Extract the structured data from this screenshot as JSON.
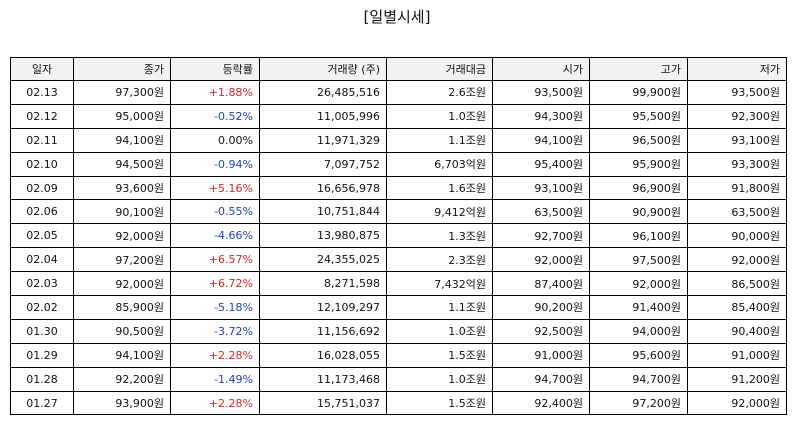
{
  "title": "[일별시세]",
  "table": {
    "headers": [
      "일자",
      "종가",
      "등락률",
      "거래량 (주)",
      "거래대금",
      "시가",
      "고가",
      "저가"
    ],
    "rows": [
      [
        "02.13",
        "97,300원",
        "+1.88%",
        "26,485,516",
        "2.6조원",
        "93,500원",
        "99,900원",
        "93,500원"
      ],
      [
        "02.12",
        "95,000원",
        "-0.52%",
        "11,005,996",
        "1.0조원",
        "94,300원",
        "95,500원",
        "92,300원"
      ],
      [
        "02.11",
        "94,100원",
        "0.00%",
        "11,971,329",
        "1.1조원",
        "94,100원",
        "96,500원",
        "93,100원"
      ],
      [
        "02.10",
        "94,500원",
        "-0.94%",
        "7,097,752",
        "6,703억원",
        "95,400원",
        "95,900원",
        "93,300원"
      ],
      [
        "02.09",
        "93,600원",
        "+5.16%",
        "16,656,978",
        "1.6조원",
        "93,100원",
        "96,900원",
        "91,800원"
      ],
      [
        "02.06",
        "90,100원",
        "-0.55%",
        "10,751,844",
        "9,412억원",
        "63,500원",
        "90,900원",
        "63,500원"
      ],
      [
        "02.05",
        "92,000원",
        "-4.66%",
        "13,980,875",
        "1.3조원",
        "92,700원",
        "96,100원",
        "90,000원"
      ],
      [
        "02.04",
        "97,200원",
        "+6.57%",
        "24,355,025",
        "2.3조원",
        "92,000원",
        "97,500원",
        "92,000원"
      ],
      [
        "02.03",
        "92,000원",
        "+6.72%",
        "8,271,598",
        "7,432억원",
        "87,400원",
        "92,000원",
        "86,500원"
      ],
      [
        "02.02",
        "85,900원",
        "-5.18%",
        "12,109,297",
        "1.1조원",
        "90,200원",
        "91,400원",
        "85,400원"
      ],
      [
        "01.30",
        "90,500원",
        "-3.72%",
        "11,156,692",
        "1.0조원",
        "92,500원",
        "94,000원",
        "90,400원"
      ],
      [
        "01.29",
        "94,100원",
        "+2.28%",
        "16,028,055",
        "1.5조원",
        "91,000원",
        "95,600원",
        "91,000원"
      ],
      [
        "01.28",
        "92,200원",
        "-1.49%",
        "11,173,468",
        "1.0조원",
        "94,700원",
        "94,700원",
        "91,200원"
      ],
      [
        "01.27",
        "93,900원",
        "+2.28%",
        "15,751,037",
        "1.5조원",
        "92,400원",
        "97,200원",
        "92,000원"
      ]
    ]
  }
}
